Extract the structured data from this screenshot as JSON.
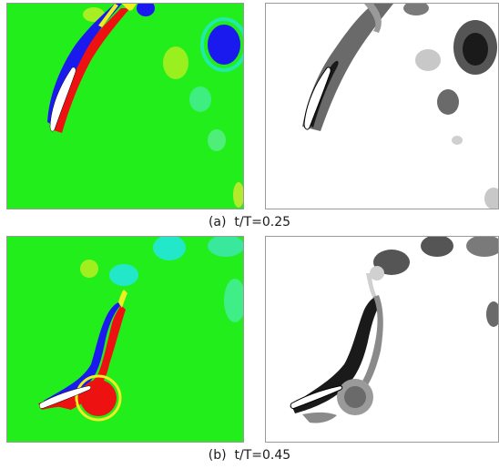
{
  "figure": {
    "rows": [
      {
        "label": "(a)",
        "time": "t/T=0.25",
        "left_panel": {
          "type": "colour vorticity field",
          "background": "#22ee1c"
        },
        "right_panel": {
          "type": "greyscale vortex field",
          "background": "#ffffff"
        }
      },
      {
        "label": "(b)",
        "time": "t/T=0.45",
        "left_panel": {
          "type": "colour vorticity field",
          "background": "#22ee1c"
        },
        "right_panel": {
          "type": "greyscale vortex field",
          "background": "#ffffff"
        }
      }
    ],
    "colors": {
      "positive": "#ee1111",
      "negative": "#1a1aee",
      "weak_positive": "#eeee22",
      "weak_negative": "#22e8e8",
      "body": "#ffffff"
    }
  }
}
